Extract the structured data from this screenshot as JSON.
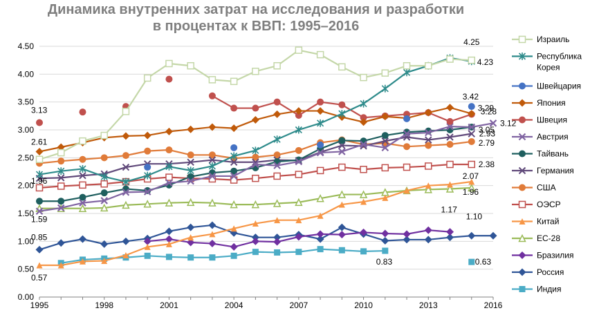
{
  "title_lines": [
    "Динамика внутренних затрат на исследования и разработки",
    "в процентах к ВВП: 1995–2016"
  ],
  "chart_data": {
    "type": "line",
    "title": "Динамика внутренних затрат на исследования и разработки в процентах к ВВП: 1995–2016",
    "xlabel": "",
    "ylabel": "",
    "xlim": [
      1995,
      2016
    ],
    "ylim": [
      0,
      4.5
    ],
    "x_ticks": [
      1995,
      1998,
      2001,
      2004,
      2007,
      2010,
      2013,
      2016
    ],
    "y_ticks": [
      "0.00",
      "0.50",
      "1.00",
      "1.50",
      "2.00",
      "2.50",
      "3.00",
      "3.50",
      "4.00",
      "4.50"
    ],
    "grid": "horizontal",
    "legend_position": "right",
    "years": [
      1995,
      1996,
      1997,
      1998,
      1999,
      2000,
      2001,
      2002,
      2003,
      2004,
      2005,
      2006,
      2007,
      2008,
      2009,
      2010,
      2011,
      2012,
      2013,
      2014,
      2015,
      2016
    ],
    "series": [
      {
        "name": "Израиль",
        "color": "#c4d7a8",
        "marker": "square-hollow",
        "values": [
          2.47,
          2.59,
          2.8,
          2.9,
          3.33,
          3.93,
          4.19,
          4.15,
          3.9,
          3.87,
          4.05,
          4.15,
          4.43,
          4.35,
          4.13,
          3.94,
          4.02,
          4.15,
          4.15,
          4.27,
          4.25,
          null
        ]
      },
      {
        "name": "Республика Корея",
        "color": "#2e8b8b",
        "marker": "star",
        "values": [
          2.2,
          2.26,
          2.3,
          2.16,
          2.07,
          2.18,
          2.34,
          2.27,
          2.35,
          2.53,
          2.63,
          2.83,
          3.0,
          3.12,
          3.29,
          3.47,
          3.74,
          4.03,
          4.15,
          4.29,
          4.23,
          null
        ]
      },
      {
        "name": "Швейцария",
        "color": "#4472c4",
        "marker": "circle",
        "values": [
          null,
          null,
          null,
          null,
          null,
          2.33,
          null,
          null,
          null,
          2.68,
          null,
          null,
          null,
          2.73,
          null,
          null,
          null,
          3.2,
          null,
          null,
          3.42,
          null
        ]
      },
      {
        "name": "Япония",
        "color": "#c05a0a",
        "marker": "diamond",
        "values": [
          2.61,
          2.69,
          2.77,
          2.86,
          2.89,
          2.9,
          2.97,
          3.01,
          3.05,
          3.03,
          3.18,
          3.28,
          3.34,
          3.34,
          3.23,
          3.14,
          3.24,
          3.21,
          3.31,
          3.4,
          3.29,
          null
        ]
      },
      {
        "name": "Швеция",
        "color": "#c0504d",
        "marker": "circle",
        "values": [
          3.13,
          null,
          3.32,
          null,
          3.42,
          null,
          3.91,
          null,
          3.61,
          3.39,
          3.39,
          3.5,
          3.26,
          3.5,
          3.45,
          3.22,
          3.25,
          3.28,
          3.31,
          3.15,
          3.28,
          null
        ]
      },
      {
        "name": "Австрия",
        "color": "#8064a2",
        "marker": "x-box",
        "values": [
          1.54,
          1.6,
          1.69,
          1.73,
          1.88,
          1.89,
          2.05,
          2.08,
          2.17,
          2.17,
          2.38,
          2.36,
          2.43,
          2.59,
          2.61,
          2.74,
          2.68,
          2.93,
          2.95,
          3.06,
          3.05,
          3.12
        ]
      },
      {
        "name": "Тайвань",
        "color": "#1f5f5f",
        "marker": "circle",
        "values": [
          1.72,
          1.72,
          1.79,
          1.87,
          1.94,
          1.91,
          2.01,
          2.16,
          2.23,
          2.26,
          2.32,
          2.43,
          2.46,
          2.66,
          2.81,
          2.8,
          2.9,
          2.96,
          2.98,
          3.0,
          3.05,
          null
        ]
      },
      {
        "name": "Германия",
        "color": "#60497a",
        "marker": "x",
        "values": [
          2.13,
          2.14,
          2.18,
          2.21,
          2.33,
          2.39,
          2.39,
          2.42,
          2.46,
          2.42,
          2.42,
          2.46,
          2.45,
          2.6,
          2.72,
          2.71,
          2.8,
          2.87,
          2.82,
          2.87,
          2.93,
          null
        ]
      },
      {
        "name": "США",
        "color": "#e07b39",
        "marker": "circle",
        "values": [
          2.4,
          2.44,
          2.47,
          2.5,
          2.54,
          2.62,
          2.64,
          2.55,
          2.55,
          2.49,
          2.51,
          2.55,
          2.63,
          2.77,
          2.82,
          2.74,
          2.76,
          2.7,
          2.72,
          2.74,
          2.79,
          null
        ]
      },
      {
        "name": "ОЭСР",
        "color": "#c0504d",
        "marker": "square-hollow",
        "values": [
          1.96,
          1.99,
          2.01,
          2.03,
          2.07,
          2.12,
          2.15,
          2.13,
          2.12,
          2.1,
          2.13,
          2.17,
          2.2,
          2.27,
          2.33,
          2.29,
          2.32,
          2.33,
          2.35,
          2.38,
          2.38,
          null
        ]
      },
      {
        "name": "Китай",
        "color": "#f79646",
        "marker": "triangle",
        "values": [
          0.57,
          0.57,
          0.64,
          0.65,
          0.75,
          0.9,
          0.95,
          1.07,
          1.13,
          1.23,
          1.32,
          1.38,
          1.38,
          1.46,
          1.66,
          1.71,
          1.78,
          1.91,
          2.0,
          2.02,
          2.07,
          null
        ]
      },
      {
        "name": "ЕС-28",
        "color": "#9bbb59",
        "marker": "triangle-hollow",
        "values": [
          1.59,
          1.59,
          1.59,
          1.6,
          1.65,
          1.67,
          1.69,
          1.7,
          1.69,
          1.66,
          1.66,
          1.68,
          1.7,
          1.77,
          1.84,
          1.84,
          1.88,
          1.91,
          1.93,
          1.94,
          1.96,
          null
        ]
      },
      {
        "name": "Бразилия",
        "color": "#7030a0",
        "marker": "diamond",
        "values": [
          null,
          null,
          null,
          null,
          null,
          1.0,
          1.04,
          0.98,
          0.96,
          0.9,
          1.0,
          0.99,
          1.08,
          1.13,
          1.12,
          1.16,
          1.14,
          1.13,
          1.2,
          1.17,
          null,
          null
        ]
      },
      {
        "name": "Россия",
        "color": "#2f5597",
        "marker": "diamond",
        "values": [
          0.85,
          0.97,
          1.04,
          0.95,
          1.0,
          1.05,
          1.18,
          1.25,
          1.29,
          1.15,
          1.07,
          1.07,
          1.12,
          1.04,
          1.25,
          1.13,
          1.01,
          1.03,
          1.03,
          1.07,
          1.1,
          1.1
        ]
      },
      {
        "name": "Индия",
        "color": "#4bacc6",
        "marker": "square",
        "values": [
          null,
          0.61,
          0.67,
          0.69,
          0.71,
          0.74,
          0.72,
          0.71,
          0.71,
          0.74,
          0.81,
          0.8,
          0.81,
          0.86,
          0.84,
          0.82,
          0.83,
          null,
          null,
          null,
          0.63,
          null
        ]
      }
    ],
    "data_labels": [
      {
        "series": "Израиль",
        "text": "4.25"
      },
      {
        "series": "Республика Корея",
        "text": "4.23"
      },
      {
        "series": "Швейцария",
        "text": "3.42"
      },
      {
        "series": "Япония",
        "text": "3.29"
      },
      {
        "series": "Швеция",
        "text": "3.28"
      },
      {
        "series": "Швеция",
        "text": "3.13"
      },
      {
        "series": "Австрия",
        "text": "3.12"
      },
      {
        "series": "Тайвань",
        "text": "3.05"
      },
      {
        "series": "Германия",
        "text": "2.93"
      },
      {
        "series": "США",
        "text": "2.79"
      },
      {
        "series": "Япония",
        "text": "2.61"
      },
      {
        "series": "ОЭСР",
        "text": "2.38"
      },
      {
        "series": "Китай",
        "text": "2.07"
      },
      {
        "series": "ЕС-28",
        "text": "1.96"
      },
      {
        "series": "ОЭСР",
        "text": "1.96"
      },
      {
        "series": "ЕС-28",
        "text": "1.59"
      },
      {
        "series": "Бразилия",
        "text": "1.17"
      },
      {
        "series": "Россия",
        "text": "1.10"
      },
      {
        "series": "Россия",
        "text": "0.85"
      },
      {
        "series": "Индия",
        "text": "0.83"
      },
      {
        "series": "Индия",
        "text": "0.63"
      },
      {
        "series": "Китай",
        "text": "0.57"
      }
    ]
  }
}
